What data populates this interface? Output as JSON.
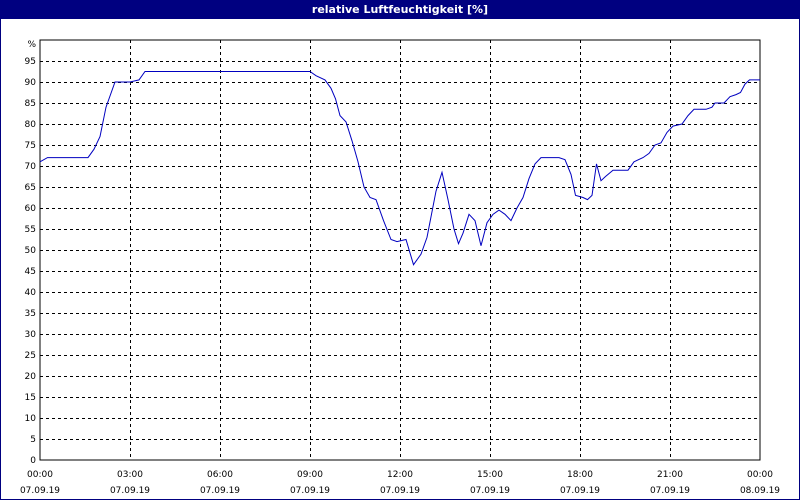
{
  "chart_data": {
    "type": "line",
    "title": "relative Luftfeuchtigkeit [%]",
    "y_unit_label": "%",
    "ylim": [
      0,
      100
    ],
    "yticks": [
      0,
      5,
      10,
      15,
      20,
      25,
      30,
      35,
      40,
      45,
      50,
      55,
      60,
      65,
      70,
      75,
      80,
      85,
      90,
      95
    ],
    "xlim_hours": [
      0,
      24
    ],
    "xticks": [
      {
        "hour": 0,
        "time": "00:00",
        "date": "07.09.19"
      },
      {
        "hour": 3,
        "time": "03:00",
        "date": "07.09.19"
      },
      {
        "hour": 6,
        "time": "06:00",
        "date": "07.09.19"
      },
      {
        "hour": 9,
        "time": "09:00",
        "date": "07.09.19"
      },
      {
        "hour": 12,
        "time": "12:00",
        "date": "07.09.19"
      },
      {
        "hour": 15,
        "time": "15:00",
        "date": "07.09.19"
      },
      {
        "hour": 18,
        "time": "18:00",
        "date": "07.09.19"
      },
      {
        "hour": 21,
        "time": "21:00",
        "date": "07.09.19"
      },
      {
        "hour": 24,
        "time": "00:00",
        "date": "08.09.19"
      }
    ],
    "grid": true,
    "series": [
      {
        "color": "#0000c0",
        "points": [
          [
            0.0,
            71
          ],
          [
            0.25,
            72
          ],
          [
            1.0,
            72
          ],
          [
            1.6,
            72
          ],
          [
            1.8,
            74
          ],
          [
            2.0,
            77
          ],
          [
            2.2,
            84
          ],
          [
            2.5,
            90
          ],
          [
            3.0,
            90
          ],
          [
            3.3,
            90.5
          ],
          [
            3.5,
            92.5
          ],
          [
            5.0,
            92.5
          ],
          [
            7.0,
            92.5
          ],
          [
            9.0,
            92.5
          ],
          [
            9.2,
            91.5
          ],
          [
            9.5,
            90.5
          ],
          [
            9.7,
            88.5
          ],
          [
            9.85,
            86
          ],
          [
            10.0,
            82
          ],
          [
            10.2,
            80.5
          ],
          [
            10.4,
            76
          ],
          [
            10.6,
            71
          ],
          [
            10.8,
            65
          ],
          [
            11.0,
            62.5
          ],
          [
            11.2,
            62
          ],
          [
            11.45,
            57
          ],
          [
            11.7,
            52.5
          ],
          [
            11.9,
            52
          ],
          [
            12.2,
            52.5
          ],
          [
            12.45,
            46.5
          ],
          [
            12.7,
            49
          ],
          [
            12.9,
            53
          ],
          [
            13.2,
            64
          ],
          [
            13.4,
            68.5
          ],
          [
            13.6,
            62
          ],
          [
            13.8,
            55
          ],
          [
            13.95,
            51.5
          ],
          [
            14.1,
            54
          ],
          [
            14.3,
            58.5
          ],
          [
            14.5,
            57
          ],
          [
            14.7,
            51
          ],
          [
            14.9,
            56.5
          ],
          [
            15.1,
            58.5
          ],
          [
            15.3,
            59.5
          ],
          [
            15.5,
            58.5
          ],
          [
            15.7,
            57
          ],
          [
            15.9,
            60
          ],
          [
            16.1,
            62.5
          ],
          [
            16.3,
            67
          ],
          [
            16.5,
            70.5
          ],
          [
            16.7,
            72
          ],
          [
            17.3,
            72
          ],
          [
            17.5,
            71.5
          ],
          [
            17.7,
            68
          ],
          [
            17.85,
            63
          ],
          [
            18.1,
            62.5
          ],
          [
            18.25,
            62
          ],
          [
            18.4,
            63
          ],
          [
            18.55,
            70.5
          ],
          [
            18.7,
            66.5
          ],
          [
            18.85,
            67.5
          ],
          [
            19.1,
            69
          ],
          [
            19.6,
            69
          ],
          [
            19.8,
            71
          ],
          [
            20.1,
            72
          ],
          [
            20.3,
            73
          ],
          [
            20.5,
            75
          ],
          [
            20.7,
            75.5
          ],
          [
            20.9,
            78
          ],
          [
            21.1,
            79.5
          ],
          [
            21.4,
            80
          ],
          [
            21.6,
            82
          ],
          [
            21.8,
            83.5
          ],
          [
            22.2,
            83.5
          ],
          [
            22.4,
            84
          ],
          [
            22.5,
            85
          ],
          [
            22.8,
            85
          ],
          [
            23.0,
            86.5
          ],
          [
            23.2,
            87
          ],
          [
            23.35,
            87.5
          ],
          [
            23.5,
            89.5
          ],
          [
            23.65,
            90.5
          ],
          [
            24.0,
            90.5
          ]
        ]
      }
    ]
  }
}
